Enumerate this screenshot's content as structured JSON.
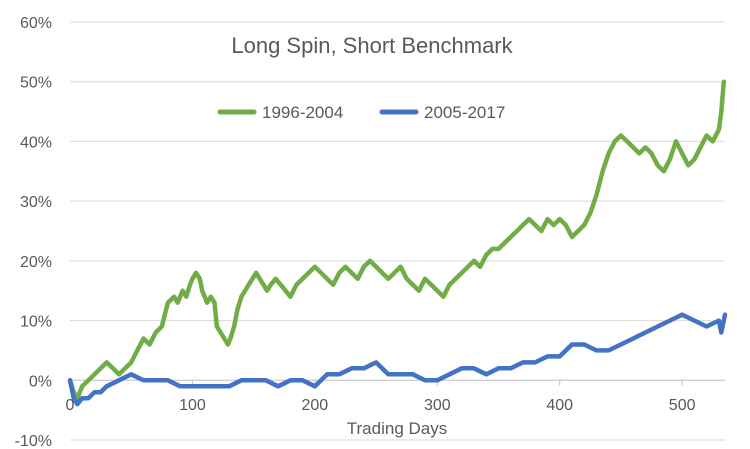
{
  "chart_data": {
    "type": "line",
    "title": "Long Spin, Short Benchmark",
    "xlabel": "Trading Days",
    "ylabel": "",
    "xlim": [
      0,
      535
    ],
    "ylim": [
      -10,
      60
    ],
    "x_ticks": [
      0,
      100,
      200,
      300,
      400,
      500
    ],
    "y_ticks": [
      -10,
      0,
      10,
      20,
      30,
      40,
      50,
      60
    ],
    "y_tick_labels": [
      "-10%",
      "0%",
      "10%",
      "20%",
      "30%",
      "40%",
      "50%",
      "60%"
    ],
    "x_tick_labels": [
      "0",
      "100",
      "200",
      "300",
      "400",
      "500"
    ],
    "grid": "horizontal",
    "legend_position": "top-center",
    "series": [
      {
        "name": "1996-2004",
        "color": "#70AD47",
        "x": [
          0,
          3,
          6,
          10,
          15,
          20,
          25,
          30,
          35,
          40,
          45,
          50,
          55,
          60,
          65,
          70,
          75,
          80,
          85,
          88,
          92,
          95,
          98,
          100,
          103,
          106,
          108,
          112,
          115,
          118,
          120,
          123,
          126,
          129,
          131,
          134,
          137,
          140,
          143,
          146,
          149,
          152,
          155,
          158,
          161,
          164,
          168,
          172,
          176,
          180,
          185,
          190,
          195,
          200,
          205,
          210,
          215,
          220,
          225,
          230,
          235,
          240,
          245,
          250,
          255,
          260,
          265,
          270,
          275,
          280,
          285,
          290,
          295,
          300,
          305,
          310,
          315,
          320,
          325,
          330,
          335,
          340,
          345,
          350,
          355,
          360,
          365,
          370,
          375,
          380,
          385,
          390,
          395,
          400,
          405,
          410,
          415,
          420,
          425,
          430,
          435,
          440,
          445,
          450,
          455,
          460,
          465,
          470,
          475,
          480,
          485,
          490,
          495,
          500,
          505,
          510,
          515,
          520,
          525,
          530,
          532,
          534
        ],
        "values": [
          0,
          -2,
          -3,
          -1,
          0,
          1,
          2,
          3,
          2,
          1,
          2,
          3,
          5,
          7,
          6,
          8,
          9,
          13,
          14,
          13,
          15,
          14,
          16,
          17,
          18,
          17,
          15,
          13,
          14,
          13,
          9,
          8,
          7,
          6,
          7,
          9,
          12,
          14,
          15,
          16,
          17,
          18,
          17,
          16,
          15,
          16,
          17,
          16,
          15,
          14,
          16,
          17,
          18,
          19,
          18,
          17,
          16,
          18,
          19,
          18,
          17,
          19,
          20,
          19,
          18,
          17,
          18,
          19,
          17,
          16,
          15,
          17,
          16,
          15,
          14,
          16,
          17,
          18,
          19,
          20,
          19,
          21,
          22,
          22,
          23,
          24,
          25,
          26,
          27,
          26,
          25,
          27,
          26,
          27,
          26,
          24,
          25,
          26,
          28,
          31,
          35,
          38,
          40,
          41,
          40,
          39,
          38,
          39,
          38,
          36,
          35,
          37,
          40,
          38,
          36,
          37,
          39,
          41,
          40,
          42,
          45,
          50
        ]
      },
      {
        "name": "2005-2017",
        "color": "#4472C4",
        "x": [
          0,
          3,
          6,
          10,
          15,
          20,
          25,
          30,
          40,
          50,
          60,
          70,
          80,
          90,
          100,
          110,
          120,
          130,
          140,
          150,
          160,
          170,
          180,
          190,
          200,
          210,
          220,
          230,
          240,
          250,
          260,
          270,
          280,
          290,
          300,
          310,
          320,
          330,
          340,
          350,
          360,
          370,
          380,
          390,
          400,
          410,
          420,
          430,
          440,
          450,
          460,
          470,
          480,
          490,
          500,
          510,
          520,
          530,
          532,
          535
        ],
        "values": [
          0,
          -3,
          -4,
          -3,
          -3,
          -2,
          -2,
          -1,
          0,
          1,
          0,
          0,
          0,
          -1,
          -1,
          -1,
          -1,
          -1,
          0,
          0,
          0,
          -1,
          0,
          0,
          -1,
          1,
          1,
          2,
          2,
          3,
          1,
          1,
          1,
          0,
          0,
          1,
          2,
          2,
          1,
          2,
          2,
          3,
          3,
          4,
          4,
          6,
          6,
          5,
          5,
          6,
          7,
          8,
          9,
          10,
          11,
          10,
          9,
          10,
          8,
          11
        ]
      }
    ]
  }
}
